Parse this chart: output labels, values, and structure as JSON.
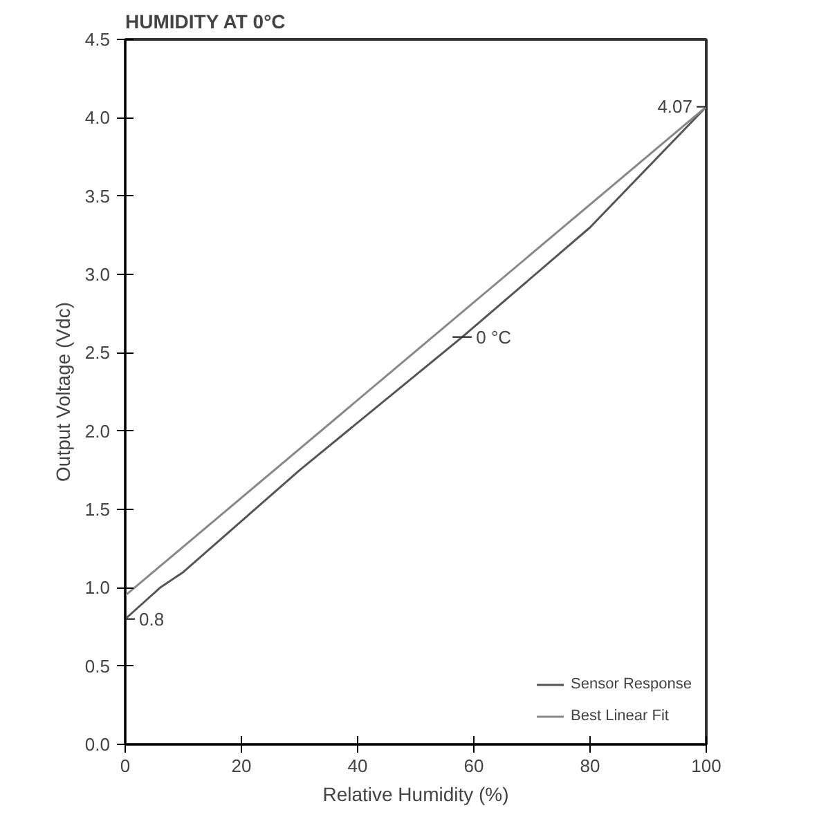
{
  "chart_data": {
    "type": "line",
    "title": "HUMIDITY AT 0°C",
    "xlabel": "Relative Humidity (%)",
    "ylabel": "Output Voltage (Vdc)",
    "series": [
      {
        "name": "Sensor Response",
        "color": "#555555",
        "x": [
          0,
          3,
          6,
          10,
          30,
          58,
          80,
          100
        ],
        "values": [
          0.8,
          0.9,
          1.0,
          1.1,
          1.75,
          2.6,
          3.3,
          4.07
        ]
      },
      {
        "name": "Best Linear Fit",
        "color": "#888888",
        "x": [
          0,
          100
        ],
        "values": [
          0.95,
          4.07
        ]
      }
    ],
    "xlim": [
      0,
      100
    ],
    "xticks": [
      0,
      20,
      40,
      60,
      80,
      100
    ],
    "ylim": [
      0,
      4.5
    ],
    "yticks": [
      {
        "value": 0,
        "label": "0.0"
      },
      0.5,
      {
        "value": 1,
        "label": "1.0"
      },
      1.5,
      {
        "value": 2,
        "label": "2.0"
      },
      2.5,
      {
        "value": 3,
        "label": "3.0"
      },
      3.5,
      {
        "value": 4,
        "label": "4.0"
      },
      4.5
    ],
    "annotations": [
      {
        "text": "4.07",
        "x": 100,
        "y": 4.07
      },
      {
        "text": "0 °C",
        "x": 58,
        "y": 2.6
      },
      {
        "text": "0.8",
        "x": 0,
        "y": 0.8
      }
    ],
    "grid": false,
    "legend": "bottom right",
    "marker": "none",
    "line_style": "solid"
  }
}
